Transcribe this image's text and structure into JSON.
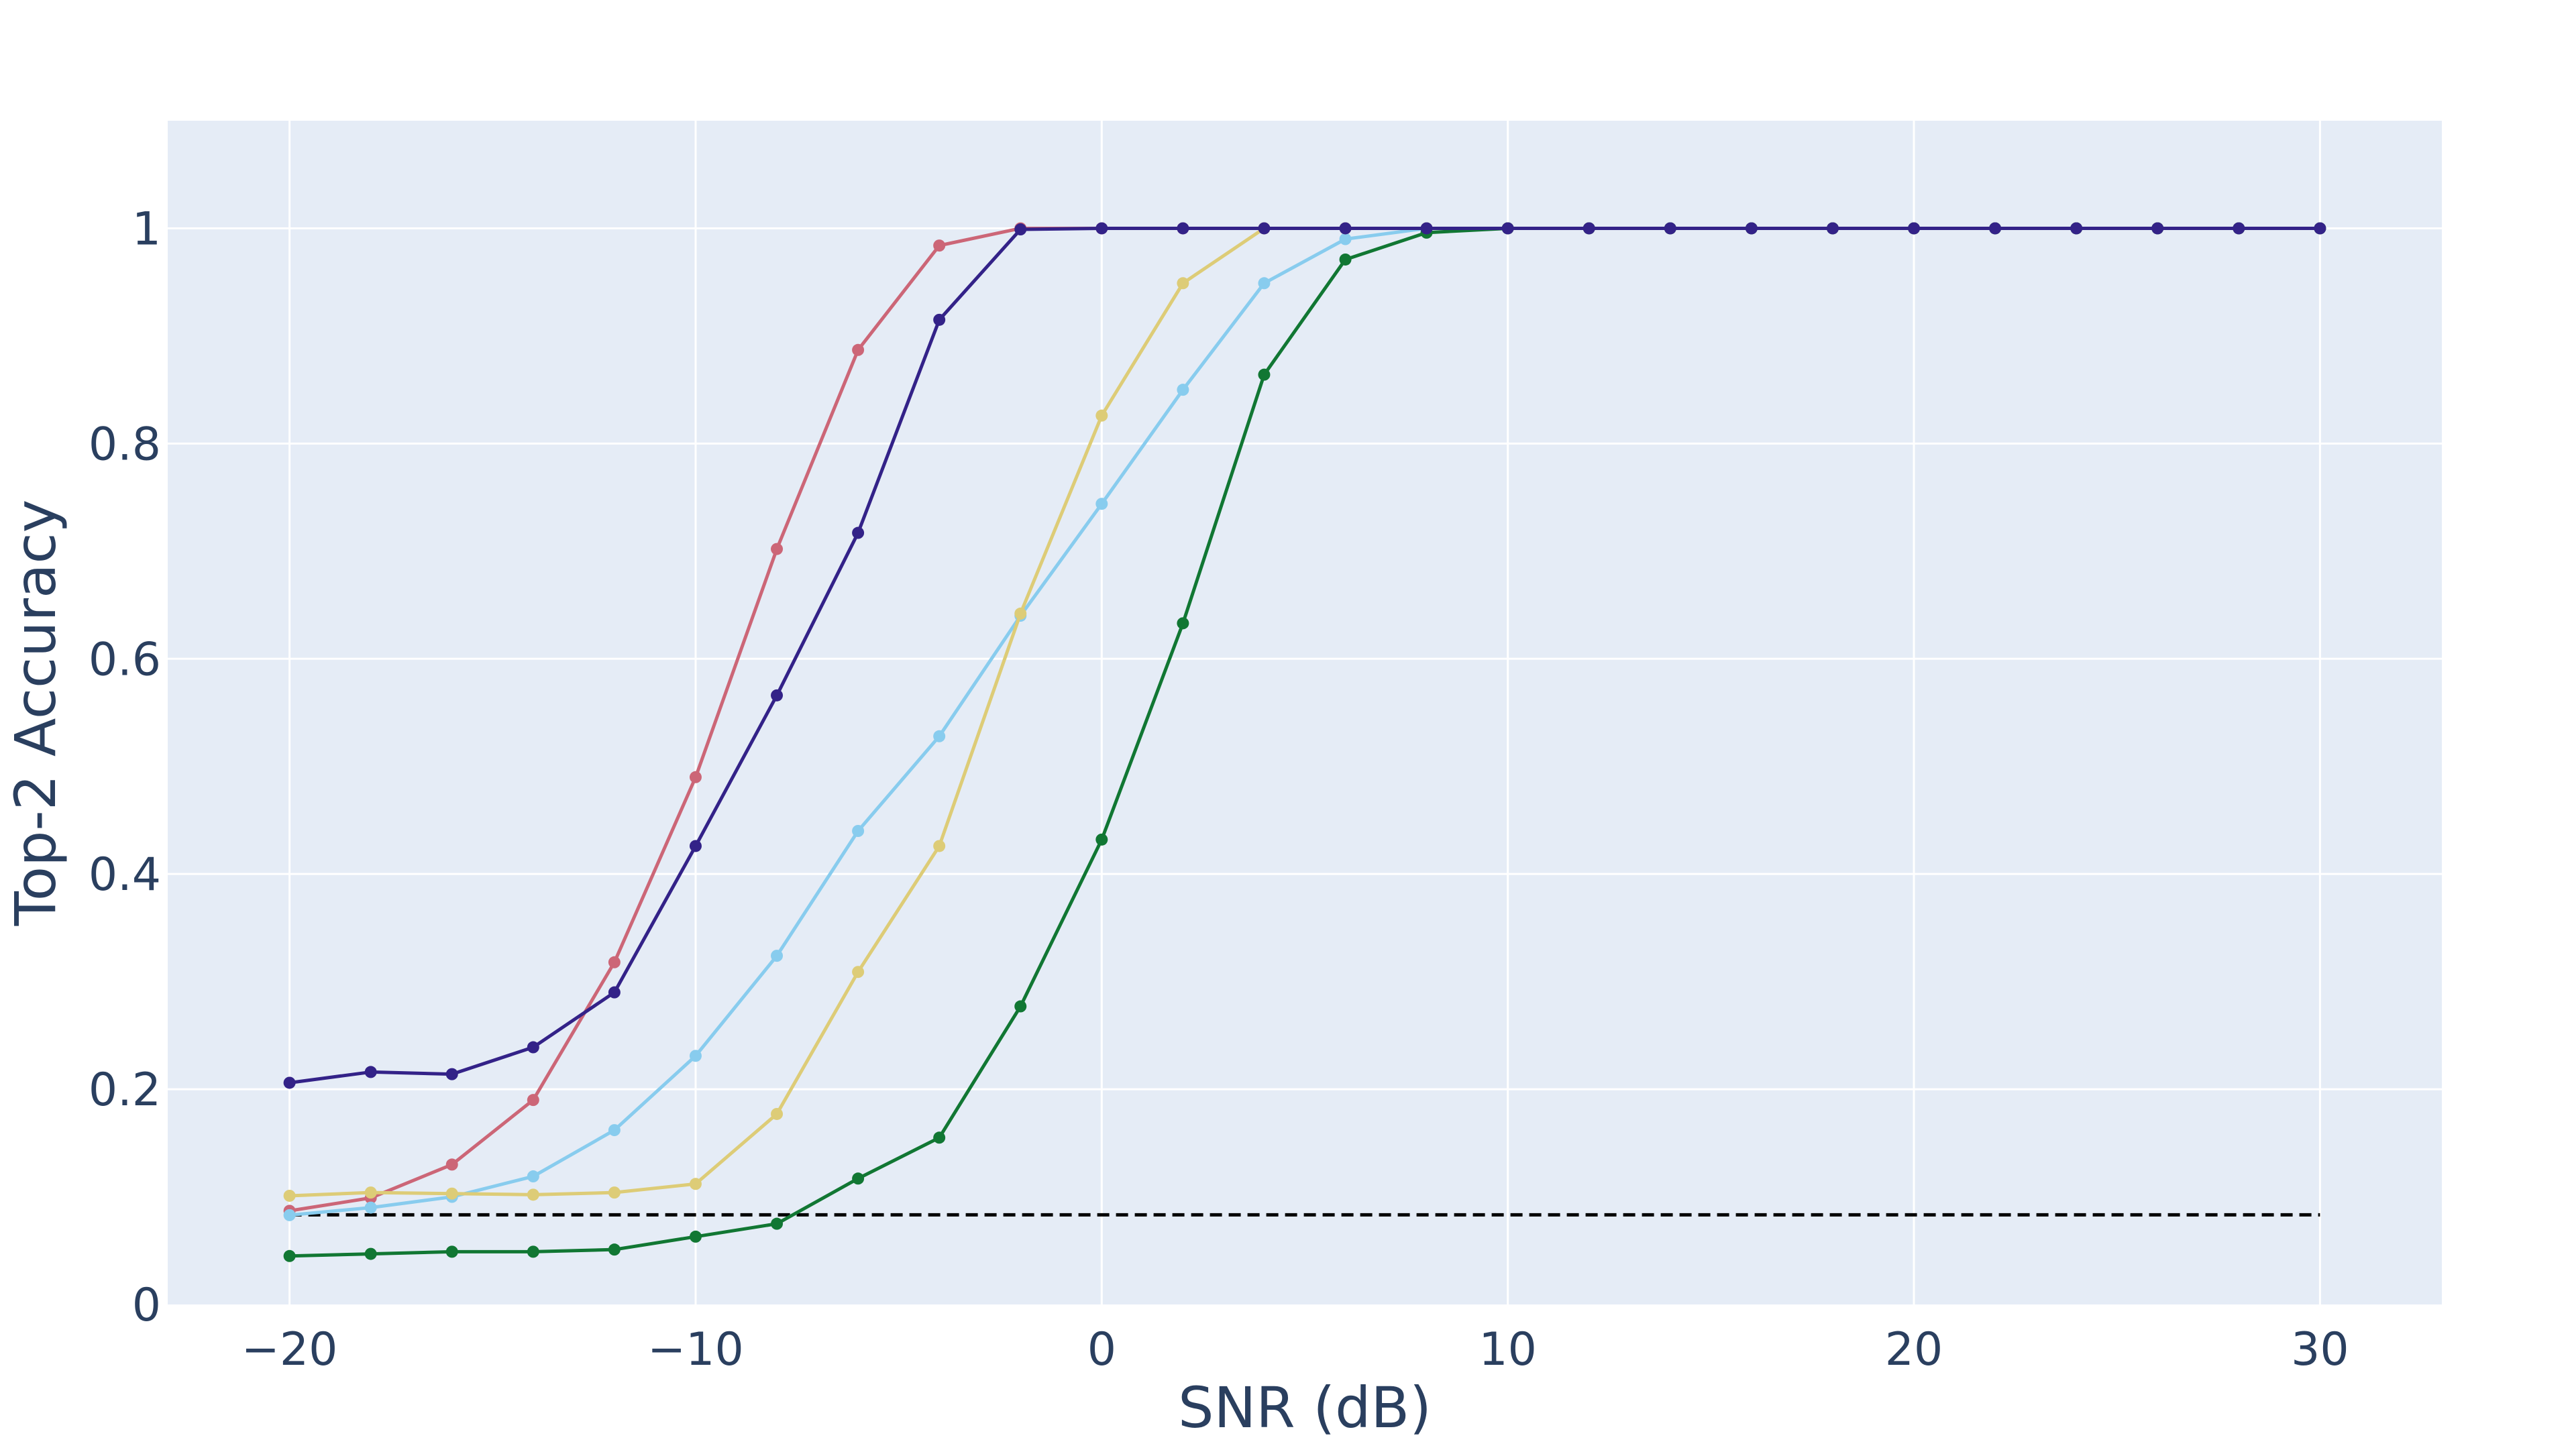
{
  "chart_data": {
    "type": "line",
    "title": "",
    "xlabel": "SNR (dB)",
    "ylabel": "Top-2 Accuracy",
    "xlim": [
      -23,
      33
    ],
    "ylim": [
      0,
      1.1
    ],
    "x_ticks": [
      -20,
      -10,
      0,
      10,
      20,
      30
    ],
    "x_tick_labels": [
      "−20",
      "−10",
      "0",
      "10",
      "20",
      "30"
    ],
    "y_ticks": [
      0,
      0.2,
      0.4,
      0.6,
      0.8,
      1
    ],
    "y_tick_labels": [
      "0",
      "0.2",
      "0.4",
      "0.6",
      "0.8",
      "1"
    ],
    "grid": true,
    "legend": "none",
    "plot_background": "#e5ecf6",
    "x": [
      -20,
      -18,
      -16,
      -14,
      -12,
      -10,
      -8,
      -6,
      -4,
      -2,
      0,
      2,
      4,
      6,
      8,
      10,
      12,
      14,
      16,
      18,
      20,
      22,
      24,
      26,
      28,
      30
    ],
    "series": [
      {
        "color": "#cc6677",
        "values": [
          0.087,
          0.099,
          0.13,
          0.19,
          0.318,
          0.49,
          0.702,
          0.887,
          0.984,
          1.0,
          1.0,
          1.0,
          1.0,
          1.0,
          1.0,
          1.0,
          1.0,
          1.0,
          1.0,
          1.0,
          1.0,
          1.0,
          1.0,
          1.0,
          1.0,
          1.0
        ]
      },
      {
        "color": "#88ccee",
        "values": [
          0.083,
          0.09,
          0.1,
          0.119,
          0.162,
          0.231,
          0.324,
          0.44,
          0.528,
          0.64,
          0.744,
          0.85,
          0.949,
          0.99,
          1.0,
          1.0,
          1.0,
          1.0,
          1.0,
          1.0,
          1.0,
          1.0,
          1.0,
          1.0,
          1.0,
          1.0
        ]
      },
      {
        "color": "#ddcc77",
        "values": [
          0.101,
          0.104,
          0.103,
          0.102,
          0.104,
          0.112,
          0.177,
          0.309,
          0.426,
          0.642,
          0.826,
          0.949,
          1.0,
          1.0,
          1.0,
          1.0,
          1.0,
          1.0,
          1.0,
          1.0,
          1.0,
          1.0,
          1.0,
          1.0,
          1.0,
          1.0
        ]
      },
      {
        "color": "#117733",
        "values": [
          0.045,
          0.047,
          0.049,
          0.049,
          0.051,
          0.063,
          0.075,
          0.117,
          0.155,
          0.277,
          0.432,
          0.633,
          0.864,
          0.971,
          0.996,
          1.0,
          1.0,
          1.0,
          1.0,
          1.0,
          1.0,
          1.0,
          1.0,
          1.0,
          1.0,
          1.0
        ]
      },
      {
        "color": "#332288",
        "values": [
          0.206,
          0.216,
          0.214,
          0.239,
          0.29,
          0.426,
          0.566,
          0.717,
          0.915,
          0.999,
          1.0,
          1.0,
          1.0,
          1.0,
          1.0,
          1.0,
          1.0,
          1.0,
          1.0,
          1.0,
          1.0,
          1.0,
          1.0,
          1.0,
          1.0,
          1.0
        ]
      }
    ],
    "reference_line": {
      "y": 0.0833,
      "x_range": [
        -20,
        30
      ],
      "color": "#000000",
      "style": "dashed"
    }
  }
}
